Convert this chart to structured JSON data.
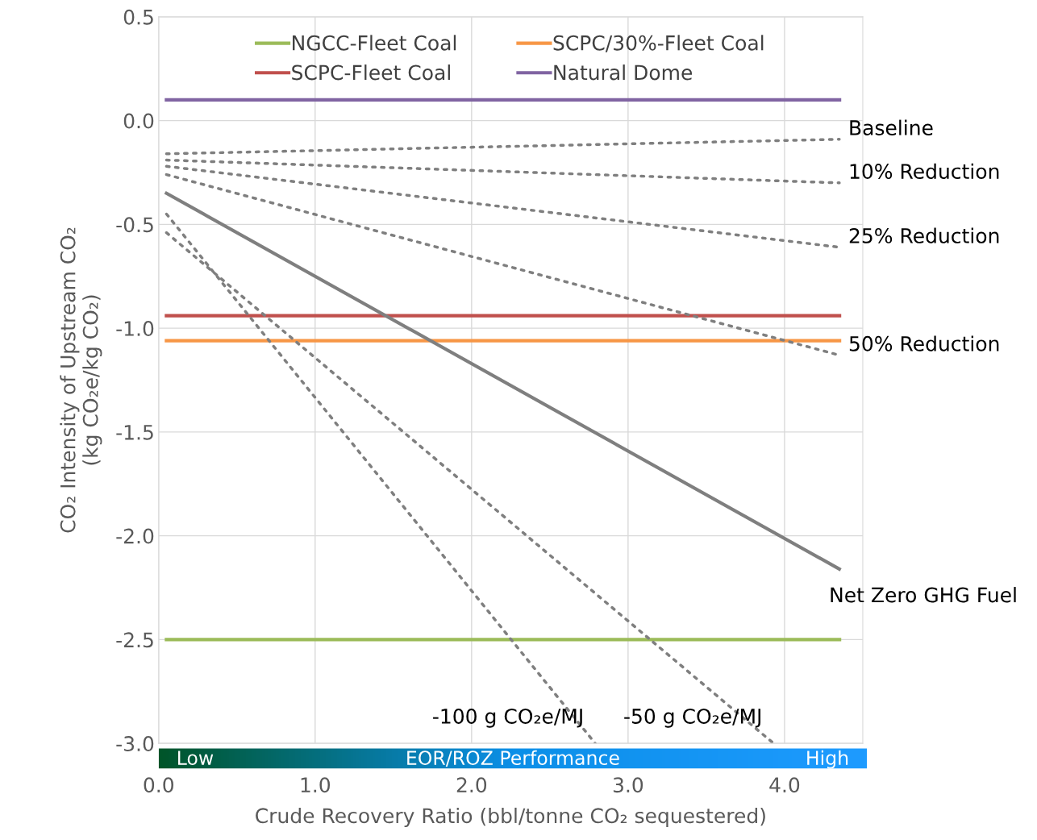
{
  "chart_data": {
    "type": "line",
    "xlabel": "Crude Recovery Ratio (bbl/tonne CO₂ sequestered)",
    "ylabel": "CO₂ Intensity of Upstream CO₂\n(kg CO₂e/kg CO₂)",
    "xlim": [
      0,
      4.5
    ],
    "ylim": [
      -3.0,
      0.5
    ],
    "xticks": [
      {
        "value": 0,
        "label": "0.0"
      },
      {
        "value": 1,
        "label": "1.0"
      },
      {
        "value": 2,
        "label": "2.0"
      },
      {
        "value": 3,
        "label": "3.0"
      },
      {
        "value": 4,
        "label": "4.0"
      }
    ],
    "yticks": [
      0.5,
      {
        "value": 0,
        "label": "0.0"
      },
      -0.5,
      {
        "value": -1,
        "label": "-1.0"
      },
      -1.5,
      {
        "value": -2,
        "label": "-2.0"
      },
      -2.5,
      {
        "value": -3,
        "label": "-3.0"
      }
    ],
    "grid": true,
    "legend": "top",
    "series": [
      {
        "name": "Baseline",
        "color": "#7f7f7f",
        "line_style": "dotted",
        "x": [
          0.05,
          4.35
        ],
        "values": [
          -0.16,
          -0.09
        ]
      },
      {
        "name": "10% Reduction",
        "color": "#7f7f7f",
        "line_style": "dotted",
        "x": [
          0.05,
          4.35
        ],
        "values": [
          -0.19,
          -0.3
        ]
      },
      {
        "name": "25% Reduction",
        "color": "#7f7f7f",
        "line_style": "dotted",
        "x": [
          0.05,
          4.35
        ],
        "values": [
          -0.22,
          -0.61
        ]
      },
      {
        "name": "50% Reduction",
        "color": "#7f7f7f",
        "line_style": "dotted",
        "x": [
          0.05,
          4.35
        ],
        "values": [
          -0.26,
          -1.13
        ]
      },
      {
        "name": "Net Zero GHG Fuel",
        "color": "#7f7f7f",
        "line_style": "solid",
        "x": [
          0.05,
          4.35
        ],
        "values": [
          -0.35,
          -2.16
        ]
      },
      {
        "name": "-100 g CO₂e/MJ",
        "color": "#7f7f7f",
        "line_style": "dotted",
        "x": [
          0.05,
          2.79
        ],
        "values": [
          -0.45,
          -3.0
        ]
      },
      {
        "name": "-50 g CO₂e/MJ",
        "color": "#7f7f7f",
        "line_style": "dotted",
        "x": [
          0.05,
          3.93
        ],
        "values": [
          -0.54,
          -3.0
        ]
      }
    ],
    "ref_lines": [
      {
        "axis": "y",
        "value": -2.5,
        "label": "NGCC-Fleet Coal",
        "color": "#9bbb59"
      },
      {
        "axis": "y",
        "value": -0.94,
        "label": "SCPC-Fleet Coal",
        "color": "#c0504d"
      },
      {
        "axis": "y",
        "value": -1.06,
        "label": "SCPC/30%-Fleet Coal",
        "color": "#f79646"
      },
      {
        "axis": "y",
        "value": 0.1,
        "label": "Natural Dome",
        "color": "#8064a2"
      }
    ],
    "annotations": [
      "Low",
      "EOR/ROZ Performance",
      "High"
    ]
  }
}
